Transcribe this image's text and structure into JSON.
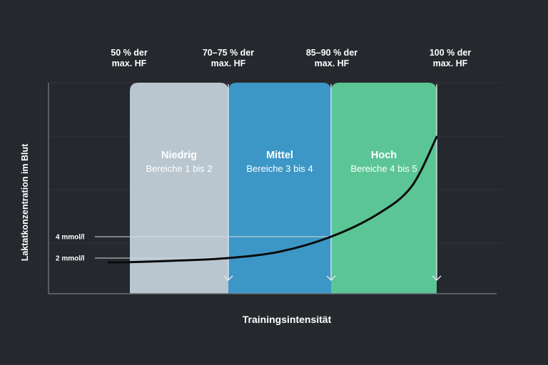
{
  "chart_data": {
    "type": "area",
    "xlabel": "Trainingsintensität",
    "ylabel": "Laktatkonzentration im Blut",
    "intensity_markers": [
      {
        "line1": "50 % der",
        "line2": "max. HF"
      },
      {
        "line1": "70–75 % der",
        "line2": "max. HF"
      },
      {
        "line1": "85–90 % der",
        "line2": "max. HF"
      },
      {
        "line1": "100 % der",
        "line2": "max. HF"
      }
    ],
    "zones": [
      {
        "name": "Niedrig",
        "subtitle": "Bereiche 1 bis 2",
        "color": "#b9c6d0"
      },
      {
        "name": "Mittel",
        "subtitle": "Bereiche 3 bis 4",
        "color": "#3c97c6"
      },
      {
        "name": "Hoch",
        "subtitle": "Bereiche 4 bis 5",
        "color": "#5bc596"
      }
    ],
    "thresholds": [
      {
        "label": "4 mmol/l",
        "value": 4
      },
      {
        "label": "2 mmol/l",
        "value": 2
      }
    ],
    "curve": [
      {
        "x": 40,
        "y": 1.6
      },
      {
        "x": 50,
        "y": 1.62
      },
      {
        "x": 60,
        "y": 1.75
      },
      {
        "x": 72.5,
        "y": 2.0
      },
      {
        "x": 80,
        "y": 2.6
      },
      {
        "x": 87.5,
        "y": 4.0
      },
      {
        "x": 93,
        "y": 5.8
      },
      {
        "x": 97,
        "y": 8.0
      },
      {
        "x": 100,
        "y": 12.0
      }
    ],
    "grid": true,
    "line_color": "#0a0b0c"
  }
}
